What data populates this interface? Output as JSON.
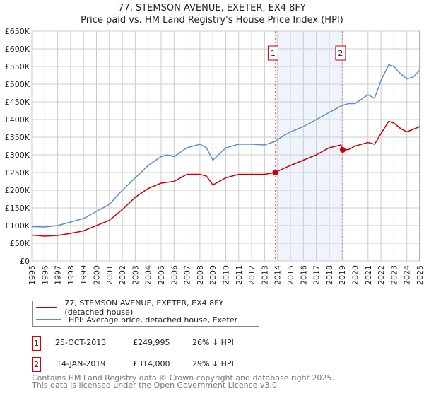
{
  "chart_data": {
    "type": "line",
    "title": "77, STEMSON AVENUE, EXETER, EX4 8FY",
    "subtitle": "Price paid vs. HM Land Registry's House Price Index (HPI)",
    "xlim": [
      1995,
      2025
    ],
    "ylim": [
      0,
      650000
    ],
    "x_ticks": [
      "1995",
      "1996",
      "1997",
      "1998",
      "1999",
      "2000",
      "2001",
      "2002",
      "2003",
      "2004",
      "2005",
      "2006",
      "2007",
      "2008",
      "2009",
      "2010",
      "2011",
      "2012",
      "2013",
      "2014",
      "2015",
      "2016",
      "2017",
      "2018",
      "2019",
      "2020",
      "2021",
      "2022",
      "2023",
      "2024",
      "2025"
    ],
    "y_ticks": [
      {
        "v": 0,
        "label": "£0"
      },
      {
        "v": 50000,
        "label": "£50K"
      },
      {
        "v": 100000,
        "label": "£100K"
      },
      {
        "v": 150000,
        "label": "£150K"
      },
      {
        "v": 200000,
        "label": "£200K"
      },
      {
        "v": 250000,
        "label": "£250K"
      },
      {
        "v": 300000,
        "label": "£300K"
      },
      {
        "v": 350000,
        "label": "£350K"
      },
      {
        "v": 400000,
        "label": "£400K"
      },
      {
        "v": 450000,
        "label": "£450K"
      },
      {
        "v": 500000,
        "label": "£500K"
      },
      {
        "v": 550000,
        "label": "£550K"
      },
      {
        "v": 600000,
        "label": "£600K"
      },
      {
        "v": 650000,
        "label": "£650K"
      }
    ],
    "grid": true,
    "shaded_range": [
      2013.82,
      2019.04
    ],
    "series": [
      {
        "name": "77, STEMSON AVENUE, EXETER, EX4 8FY (detached house)",
        "color": "#cc0000",
        "x": [
          1995,
          1996,
          1997,
          1998,
          1999,
          2000,
          2001,
          2002,
          2003,
          2004,
          2005,
          2006,
          2007,
          2008,
          2008.5,
          2009,
          2010,
          2011,
          2012,
          2013,
          2013.82,
          2014.5,
          2015,
          2016,
          2017,
          2018,
          2018.9,
          2019.04,
          2019.5,
          2020,
          2021,
          2021.5,
          2022,
          2022.6,
          2023,
          2023.5,
          2024,
          2025
        ],
        "y": [
          73000,
          70000,
          72000,
          78000,
          85000,
          100000,
          115000,
          145000,
          180000,
          205000,
          220000,
          225000,
          245000,
          245000,
          240000,
          215000,
          235000,
          245000,
          245000,
          245000,
          249995,
          262000,
          270000,
          285000,
          300000,
          320000,
          328000,
          314000,
          315000,
          325000,
          335000,
          330000,
          360000,
          395000,
          390000,
          375000,
          365000,
          380000
        ]
      },
      {
        "name": "HPI: Average price, detached house, Exeter",
        "color": "#5b8fd0",
        "x": [
          1995,
          1996,
          1997,
          1998,
          1999,
          2000,
          2001,
          2002,
          2003,
          2004,
          2005,
          2005.5,
          2006,
          2007,
          2008,
          2008.5,
          2009,
          2010,
          2011,
          2012,
          2013,
          2013.82,
          2014.5,
          2015,
          2016,
          2017,
          2018,
          2019,
          2019.5,
          2020,
          2021,
          2021.5,
          2022,
          2022.6,
          2023,
          2023.5,
          2024,
          2024.5,
          2025
        ],
        "y": [
          97000,
          96000,
          100000,
          110000,
          120000,
          140000,
          160000,
          200000,
          235000,
          270000,
          295000,
          300000,
          295000,
          320000,
          330000,
          320000,
          285000,
          320000,
          330000,
          330000,
          328000,
          338000,
          355000,
          365000,
          380000,
          400000,
          420000,
          440000,
          445000,
          445000,
          470000,
          460000,
          510000,
          555000,
          550000,
          530000,
          515000,
          520000,
          540000
        ]
      }
    ],
    "sales": [
      {
        "label": "1",
        "x": 2013.82,
        "y": 249995
      },
      {
        "label": "2",
        "x": 2019.04,
        "y": 314000
      }
    ]
  },
  "legend": [
    "77, STEMSON AVENUE, EXETER, EX4 8FY (detached house)",
    "HPI: Average price, detached house, Exeter"
  ],
  "table": [
    {
      "num": "1",
      "date": "25-OCT-2013",
      "price": "£249,995",
      "hpi": "26% ↓ HPI"
    },
    {
      "num": "2",
      "date": "14-JAN-2019",
      "price": "£314,000",
      "hpi": "29% ↓ HPI"
    }
  ],
  "footer": [
    "Contains HM Land Registry data © Crown copyright and database right 2025.",
    "This data is licensed under the Open Government Licence v3.0."
  ]
}
